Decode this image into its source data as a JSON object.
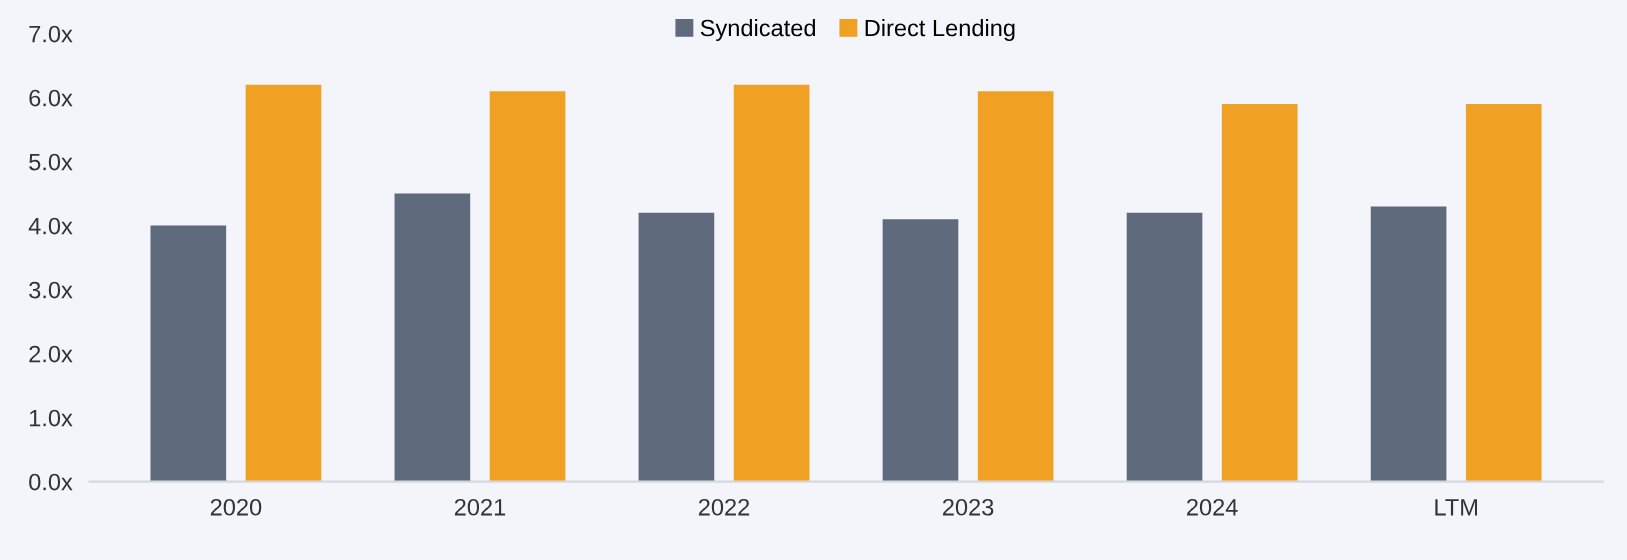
{
  "chart_data": {
    "type": "bar",
    "categories": [
      "2020",
      "2021",
      "2022",
      "2023",
      "2024",
      "LTM"
    ],
    "series": [
      {
        "name": "Syndicated",
        "color": "#5f6b7c",
        "values": [
          4.0,
          4.5,
          4.2,
          4.1,
          4.2,
          4.3
        ]
      },
      {
        "name": "Direct Lending",
        "color": "#f0a023",
        "values": [
          6.2,
          6.1,
          6.2,
          6.1,
          5.9,
          5.9
        ]
      }
    ],
    "ylim": [
      0,
      7
    ],
    "yticks": [
      {
        "value": 0,
        "label": "0.0x"
      },
      {
        "value": 1,
        "label": "1.0x"
      },
      {
        "value": 2,
        "label": "2.0x"
      },
      {
        "value": 3,
        "label": "3.0x"
      },
      {
        "value": 4,
        "label": "4.0x"
      },
      {
        "value": 5,
        "label": "5.0x"
      },
      {
        "value": 6,
        "label": "6.0x"
      },
      {
        "value": 7,
        "label": "7.0x"
      }
    ],
    "grid": false,
    "legend": "top"
  }
}
